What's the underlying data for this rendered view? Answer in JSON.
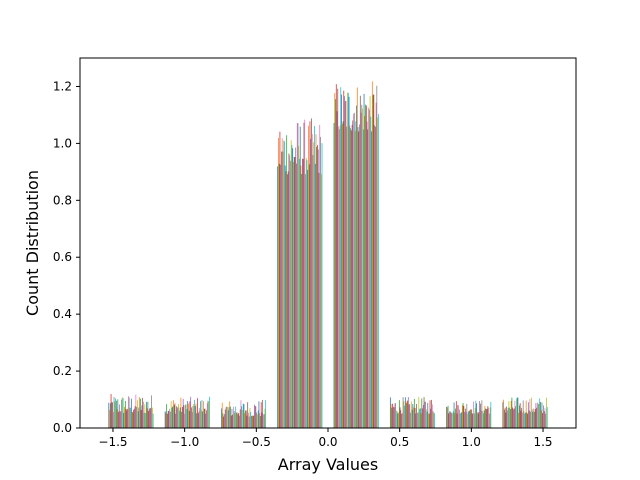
{
  "chart_data": {
    "type": "bar",
    "title": "",
    "xlabel": "Array Values",
    "ylabel": "Count Distribution",
    "xlim": [
      -1.73,
      1.73
    ],
    "ylim": [
      0,
      1.3
    ],
    "x_ticks": [
      -1.5,
      -1.0,
      -0.5,
      0.0,
      0.5,
      1.0,
      1.5
    ],
    "x_tick_labels": [
      "−1.5",
      "−1.0",
      "−0.5",
      "0.0",
      "0.5",
      "1.0",
      "1.5"
    ],
    "y_ticks": [
      0.0,
      0.2,
      0.4,
      0.6,
      0.8,
      1.0,
      1.2
    ],
    "y_tick_labels": [
      "0.0",
      "0.2",
      "0.4",
      "0.6",
      "0.8",
      "1.0",
      "1.2"
    ],
    "bins": [
      {
        "range": [
          -1.571,
          -1.178
        ],
        "min": 0.05,
        "max": 0.12
      },
      {
        "range": [
          -1.178,
          -0.785
        ],
        "min": 0.05,
        "max": 0.11
      },
      {
        "range": [
          -0.785,
          -0.393
        ],
        "min": 0.04,
        "max": 0.1
      },
      {
        "range": [
          -0.393,
          0.0
        ],
        "min": 0.89,
        "max": 1.09
      },
      {
        "range": [
          0.0,
          0.393
        ],
        "min": 1.04,
        "max": 1.22
      },
      {
        "range": [
          0.393,
          0.785
        ],
        "min": 0.05,
        "max": 0.11
      },
      {
        "range": [
          0.785,
          1.178
        ],
        "min": 0.05,
        "max": 0.1
      },
      {
        "range": [
          1.178,
          1.571
        ],
        "min": 0.05,
        "max": 0.11
      }
    ],
    "series_count": 60,
    "grid": false,
    "colors": [
      "#1f77b4",
      "#ff7f0e",
      "#2ca02c",
      "#d62728",
      "#9467bd",
      "#8c564b",
      "#e377c2",
      "#7f7f7f",
      "#bcbd22",
      "#17becf"
    ]
  }
}
